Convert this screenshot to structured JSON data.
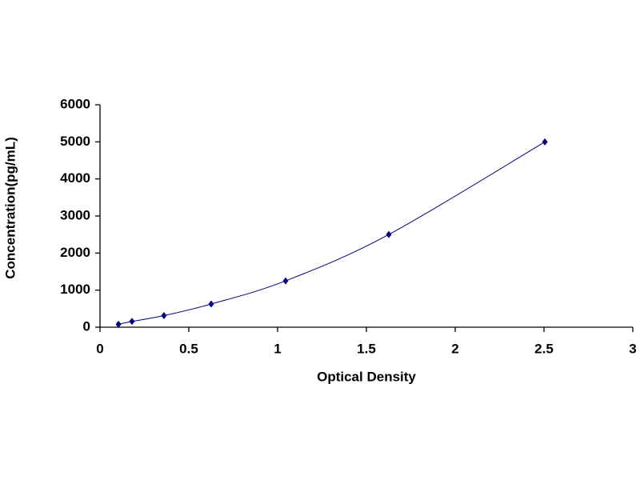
{
  "chart_data": {
    "type": "line",
    "x_label": "Optical Density",
    "y_label": "Concentration(pg/mL)",
    "series": [
      {
        "color": "#000080",
        "x": [
          0.104,
          0.18,
          0.36,
          0.626,
          1.045,
          1.626,
          2.505
        ],
        "values": [
          78,
          156,
          312,
          625,
          1250,
          2500,
          5000
        ]
      }
    ],
    "xlim": [
      0,
      3
    ],
    "xticks": [
      0,
      0.5,
      1,
      1.5,
      2,
      2.5,
      3
    ],
    "ylim": [
      0,
      6000
    ],
    "yticks": [
      0,
      1000,
      2000,
      3000,
      4000,
      5000,
      6000
    ],
    "grid": false,
    "markers": "diamond"
  }
}
